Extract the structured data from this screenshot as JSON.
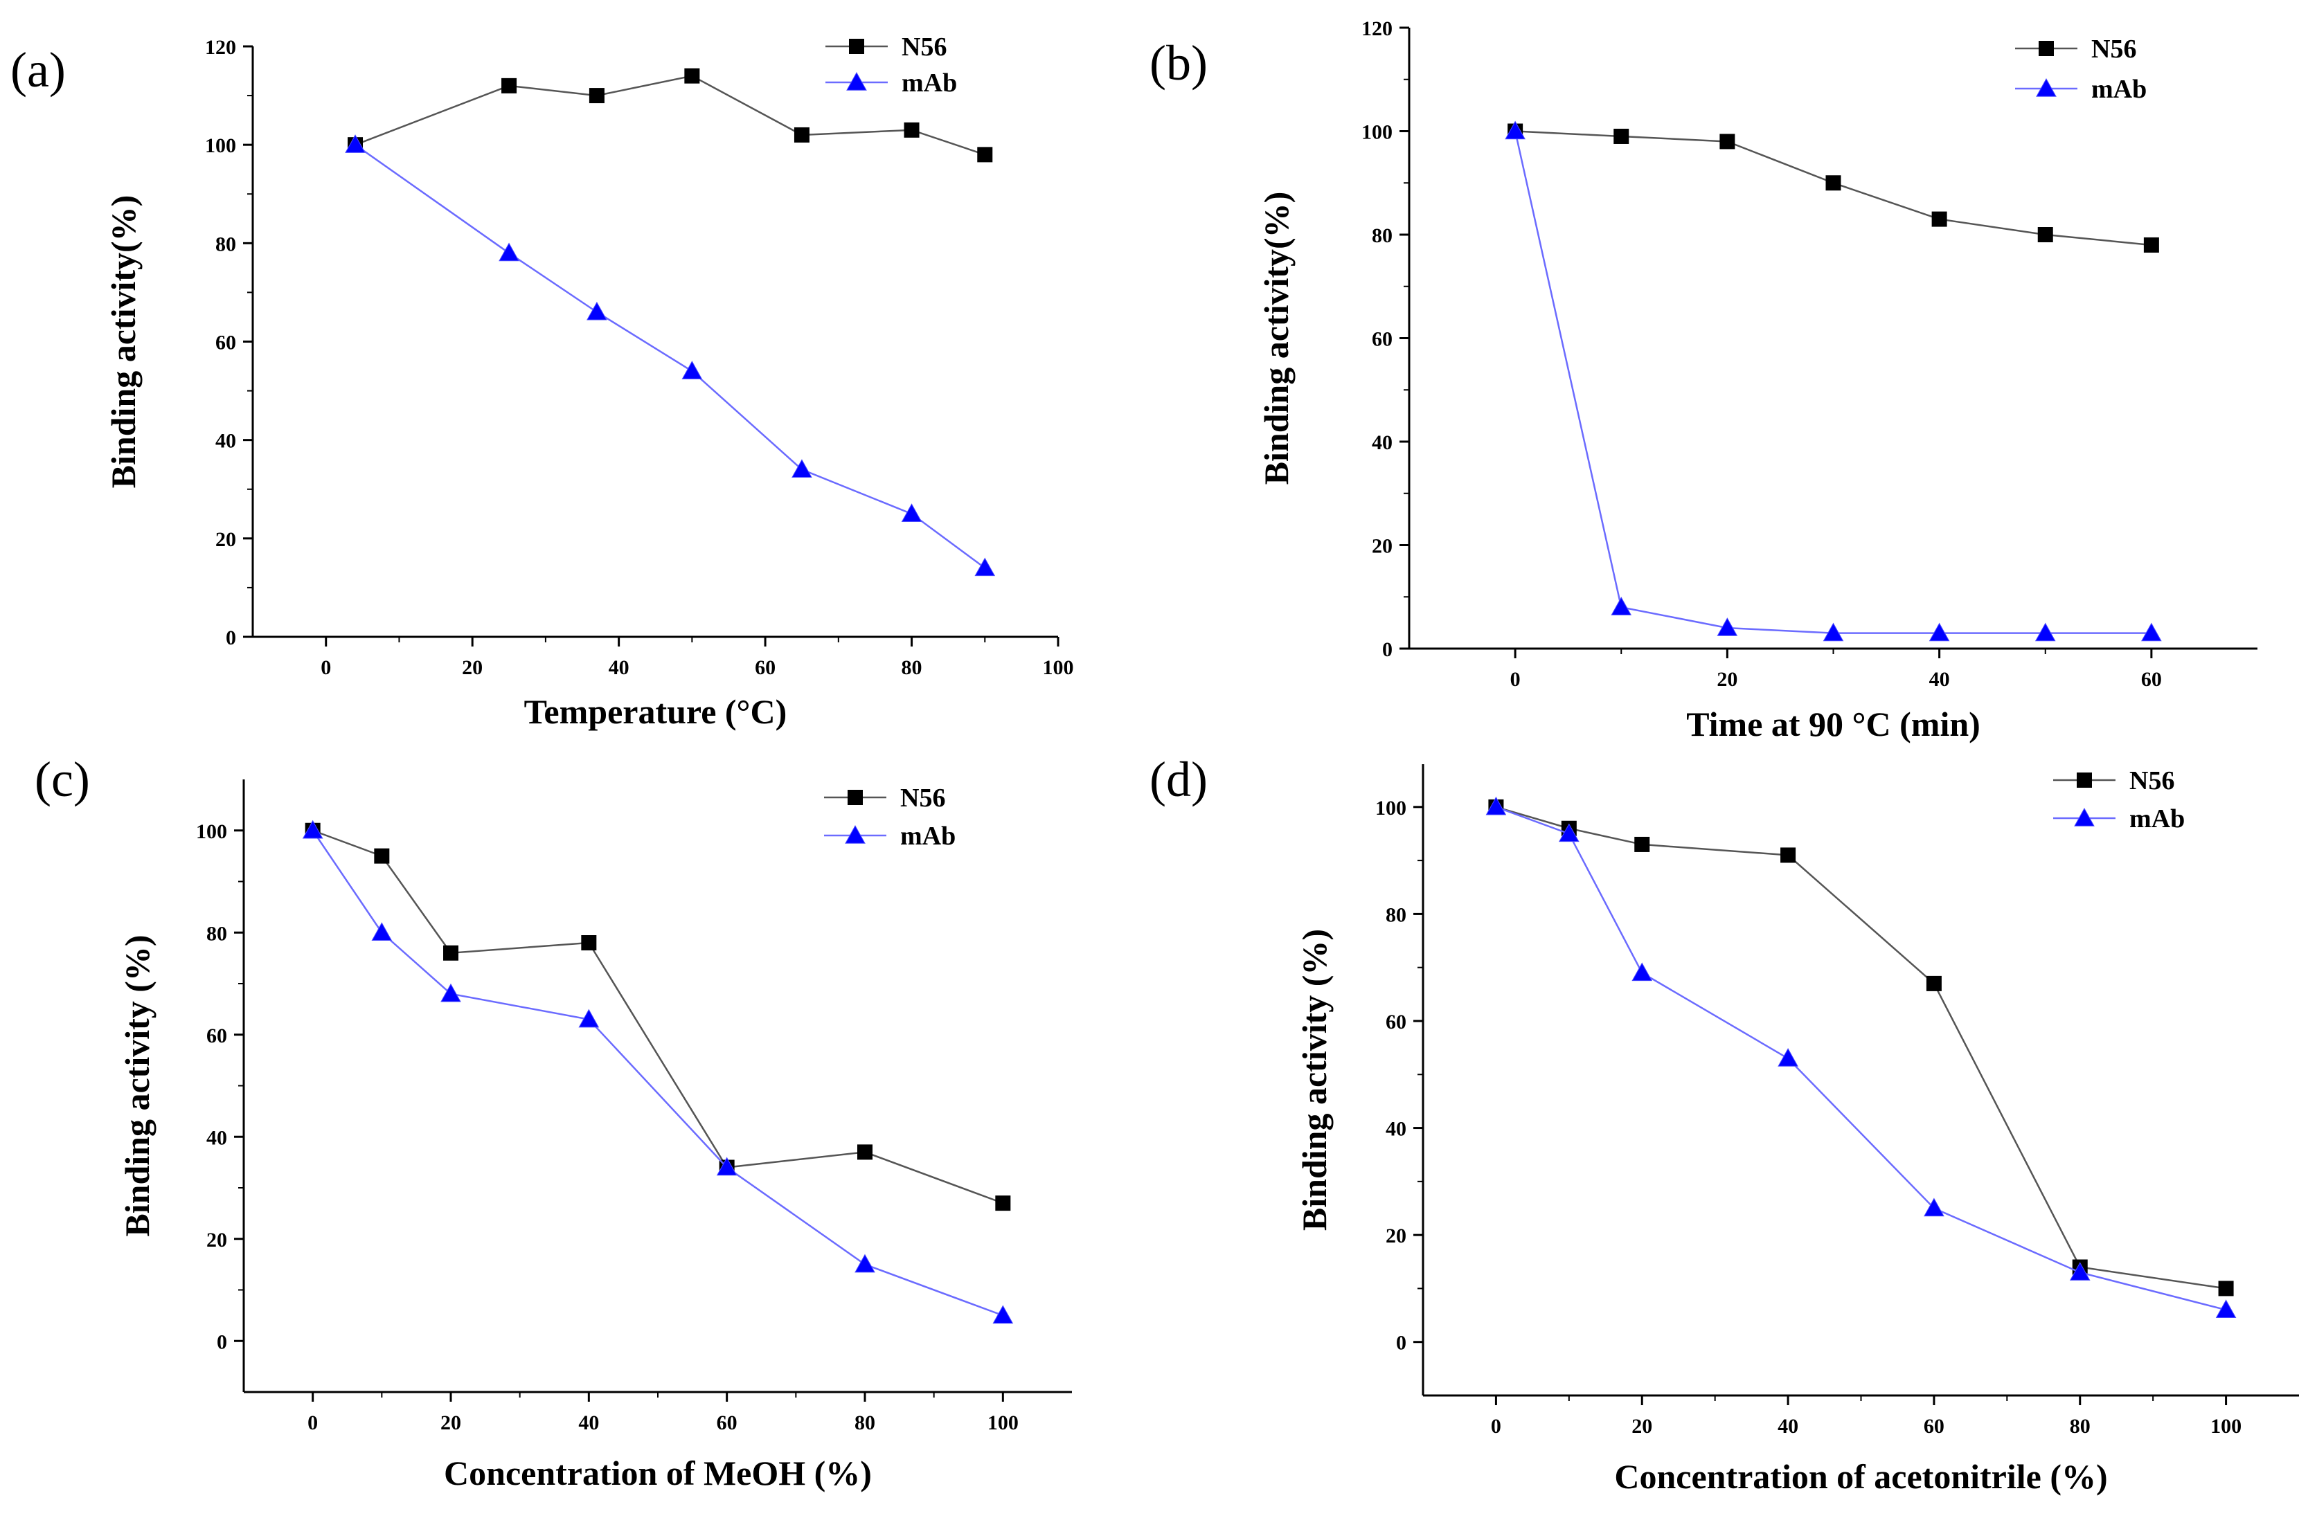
{
  "chart_data": [
    {
      "panel_label": "(a)",
      "type": "line",
      "xlabel": "Temperature (°C)",
      "ylabel": "Binding activity(%)",
      "xlim": [
        -10,
        100
      ],
      "ylim": [
        0,
        120
      ],
      "xticks": [
        0,
        20,
        40,
        60,
        80,
        100
      ],
      "yticks": [
        0,
        20,
        40,
        60,
        80,
        100,
        120
      ],
      "legend_position": "top-right",
      "grid": false,
      "series": [
        {
          "name": "N56",
          "marker": "square",
          "color": "#000000",
          "x": [
            4,
            25,
            37,
            50,
            65,
            80,
            90
          ],
          "y": [
            100,
            112,
            110,
            114,
            102,
            103,
            98
          ]
        },
        {
          "name": "mAb",
          "marker": "triangle",
          "color": "#0000ff",
          "x": [
            4,
            25,
            37,
            50,
            65,
            80,
            90
          ],
          "y": [
            100,
            78,
            66,
            54,
            34,
            25,
            14
          ]
        }
      ]
    },
    {
      "panel_label": "(b)",
      "type": "line",
      "xlabel": "Time at 90 °C (min)",
      "ylabel": "Binding activity(%)",
      "xlim": [
        -10,
        70
      ],
      "ylim": [
        0,
        120
      ],
      "xticks": [
        0,
        20,
        40,
        60
      ],
      "yticks": [
        0,
        20,
        40,
        60,
        80,
        100,
        120
      ],
      "legend_position": "top-right",
      "grid": false,
      "series": [
        {
          "name": "N56",
          "marker": "square",
          "color": "#000000",
          "x": [
            0,
            10,
            20,
            30,
            40,
            50,
            60
          ],
          "y": [
            100,
            99,
            98,
            90,
            83,
            80,
            78
          ]
        },
        {
          "name": "mAb",
          "marker": "triangle",
          "color": "#0000ff",
          "x": [
            0,
            10,
            20,
            30,
            40,
            50,
            60
          ],
          "y": [
            100,
            8,
            4,
            3,
            3,
            3,
            3
          ]
        }
      ]
    },
    {
      "panel_label": "(c)",
      "type": "line",
      "xlabel": "Concentration of MeOH (%)",
      "ylabel": "Binding activity (%)",
      "xlim": [
        -10,
        110
      ],
      "ylim": [
        -10,
        110
      ],
      "xticks": [
        0,
        20,
        40,
        60,
        80,
        100
      ],
      "yticks": [
        0,
        20,
        40,
        60,
        80,
        100
      ],
      "legend_position": "top-right",
      "grid": false,
      "series": [
        {
          "name": "N56",
          "marker": "square",
          "color": "#000000",
          "x": [
            0,
            10,
            20,
            40,
            60,
            80,
            100
          ],
          "y": [
            100,
            95,
            76,
            78,
            34,
            37,
            27
          ]
        },
        {
          "name": "mAb",
          "marker": "triangle",
          "color": "#0000ff",
          "x": [
            0,
            10,
            20,
            40,
            60,
            80,
            100
          ],
          "y": [
            100,
            80,
            68,
            63,
            34,
            15,
            5
          ]
        }
      ]
    },
    {
      "panel_label": "(d)",
      "type": "line",
      "xlabel": "Concentration of acetonitrile (%)",
      "ylabel": "Binding activity (%)",
      "xlim": [
        -10,
        110
      ],
      "ylim": [
        -10,
        108
      ],
      "xticks": [
        0,
        20,
        40,
        60,
        80,
        100
      ],
      "yticks": [
        0,
        20,
        40,
        60,
        80,
        100
      ],
      "legend_position": "top-right",
      "grid": false,
      "series": [
        {
          "name": "N56",
          "marker": "square",
          "color": "#000000",
          "x": [
            0,
            10,
            20,
            40,
            60,
            80,
            100
          ],
          "y": [
            100,
            96,
            93,
            91,
            67,
            14,
            10
          ]
        },
        {
          "name": "mAb",
          "marker": "triangle",
          "color": "#0000ff",
          "x": [
            0,
            10,
            20,
            40,
            60,
            80,
            100
          ],
          "y": [
            100,
            95,
            69,
            53,
            25,
            13,
            6
          ]
        }
      ]
    }
  ]
}
